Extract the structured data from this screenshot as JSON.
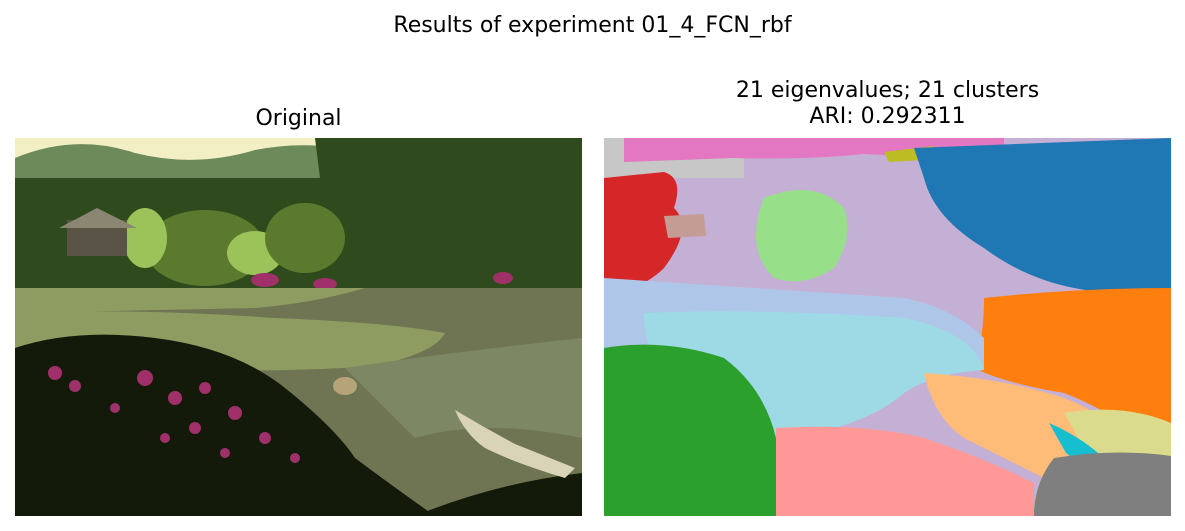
{
  "figure": {
    "suptitle": "Results of experiment 01_4_FCN_rbf"
  },
  "left_panel": {
    "title": "Original"
  },
  "right_panel": {
    "title_line1": "21 eigenvalues; 21 clusters",
    "title_line2": "ARI: 0.292311"
  },
  "colors": {
    "sky": "#f3efc4",
    "hills": "#6d8a5a",
    "foliage_dark": "#2f4a1c",
    "foliage_mid": "#5b7a2e",
    "foliage_light": "#9cc25a",
    "pond": "#6f7552",
    "lily_pads": "#8e9c62",
    "shadow": "#141a0a",
    "azalea": "#a0306a",
    "boat": "#d9d3b8",
    "seg_blue": "#1f77b4",
    "seg_orange": "#ff7f0e",
    "seg_green": "#2ca02c",
    "seg_red": "#d62728",
    "seg_lavender": "#c5b0d5",
    "seg_light_blue": "#aec7e8",
    "seg_sky": "#9edae5",
    "seg_salmon": "#ff9896",
    "seg_peach": "#ffbb78",
    "seg_light_green": "#98df8a",
    "seg_pink": "#e377c2",
    "seg_gray": "#7f7f7f",
    "seg_silver": "#c7c7c7",
    "seg_olive": "#bcbd22",
    "seg_khaki": "#dbdb8d",
    "seg_cyan": "#17becf",
    "seg_purple": "#9467bd",
    "seg_brown": "#8c564b",
    "seg_rose": "#f7b6d2",
    "seg_tan": "#c49c94"
  }
}
